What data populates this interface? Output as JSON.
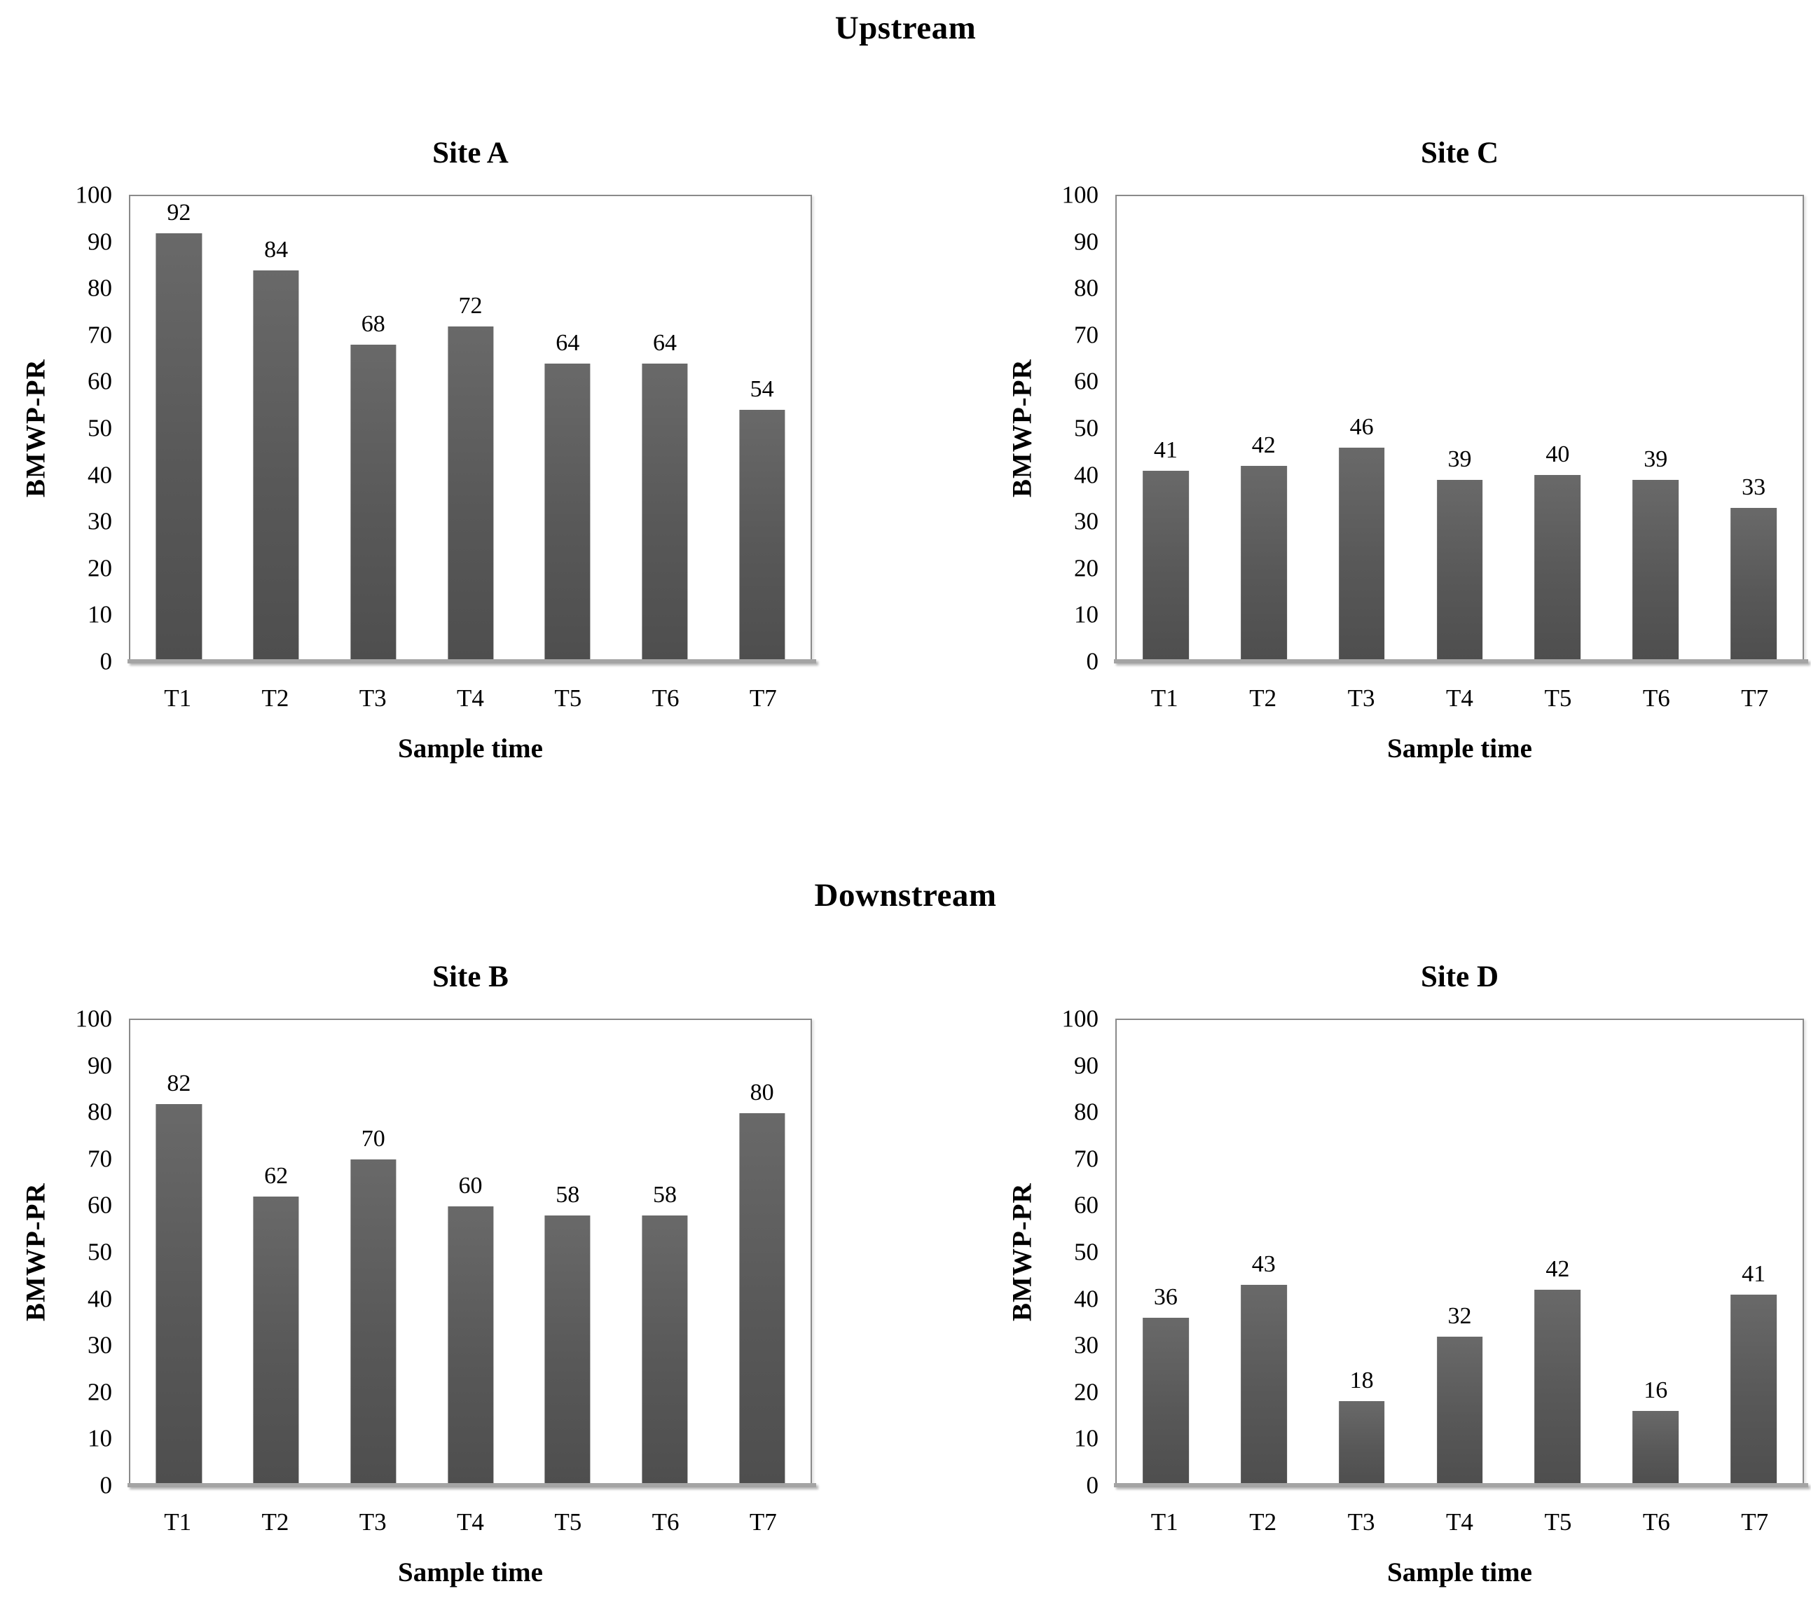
{
  "figure": {
    "background": "#ffffff"
  },
  "colors": {
    "bar_fill": "#595959",
    "bar_gradient_top": "#696969",
    "bar_gradient_bottom": "#4e4e4e",
    "plot_border": "#8a8a8a",
    "axis_line": "#a4a4a4",
    "text": "#000000"
  },
  "sections": [
    {
      "title": "Upstream"
    },
    {
      "title": "Downstream"
    }
  ],
  "y_axis": {
    "min": 0,
    "max": 100,
    "step": 10,
    "ticks": [
      100,
      90,
      80,
      70,
      60,
      50,
      40,
      30,
      20,
      10,
      0
    ]
  },
  "chart_data": [
    {
      "type": "bar",
      "section": "Upstream",
      "title": "Site A",
      "xlabel": "Sample time",
      "ylabel": "BMWP-PR",
      "categories": [
        "T1",
        "T2",
        "T3",
        "T4",
        "T5",
        "T6",
        "T7"
      ],
      "values": [
        92,
        84,
        68,
        72,
        64,
        64,
        54
      ],
      "ylim": [
        0,
        100
      ],
      "grid": false,
      "legend": false,
      "data_labels": true
    },
    {
      "type": "bar",
      "section": "Upstream",
      "title": "Site C",
      "xlabel": "Sample time",
      "ylabel": "BMWP-PR",
      "categories": [
        "T1",
        "T2",
        "T3",
        "T4",
        "T5",
        "T6",
        "T7"
      ],
      "values": [
        41,
        42,
        46,
        39,
        40,
        39,
        33
      ],
      "ylim": [
        0,
        100
      ],
      "grid": false,
      "legend": false,
      "data_labels": true
    },
    {
      "type": "bar",
      "section": "Downstream",
      "title": "Site B",
      "xlabel": "Sample time",
      "ylabel": "BMWP-PR",
      "categories": [
        "T1",
        "T2",
        "T3",
        "T4",
        "T5",
        "T6",
        "T7"
      ],
      "values": [
        82,
        62,
        70,
        60,
        58,
        58,
        80
      ],
      "ylim": [
        0,
        100
      ],
      "grid": false,
      "legend": false,
      "data_labels": true
    },
    {
      "type": "bar",
      "section": "Downstream",
      "title": "Site D",
      "xlabel": "Sample time",
      "ylabel": "BMWP-PR",
      "categories": [
        "T1",
        "T2",
        "T3",
        "T4",
        "T5",
        "T6",
        "T7"
      ],
      "values": [
        36,
        43,
        18,
        32,
        42,
        16,
        41
      ],
      "ylim": [
        0,
        100
      ],
      "grid": false,
      "legend": false,
      "data_labels": true
    }
  ]
}
